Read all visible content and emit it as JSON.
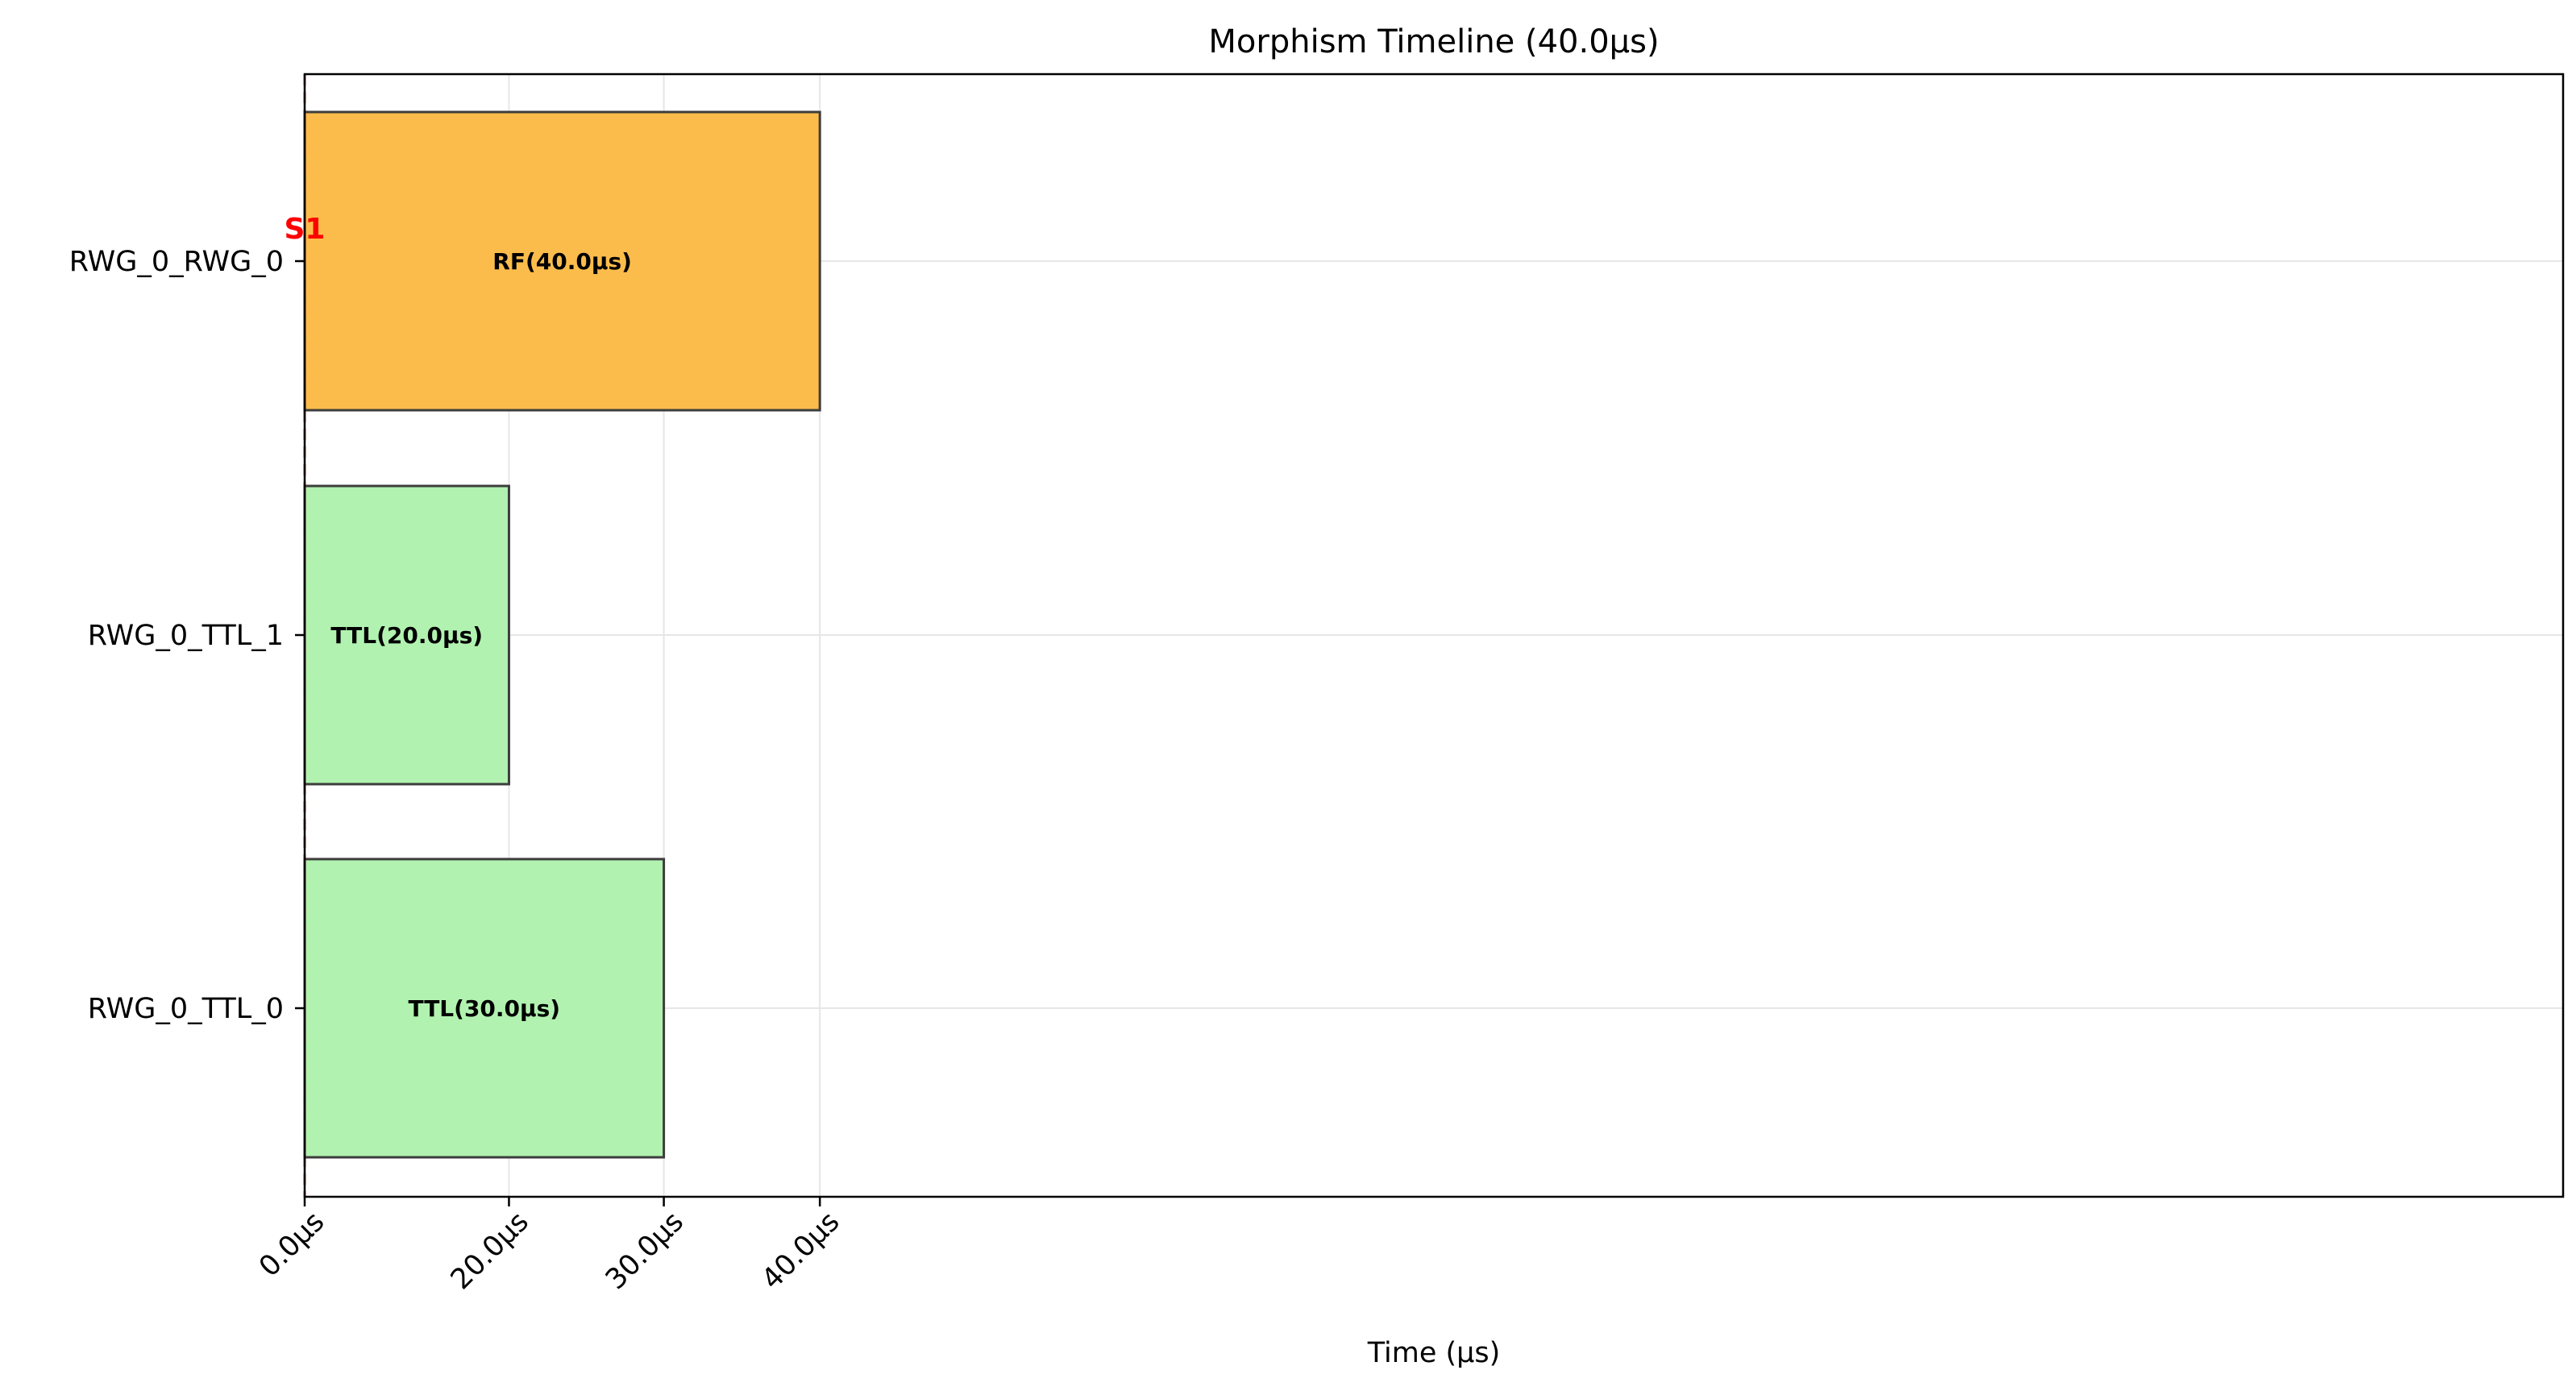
{
  "chart_data": {
    "type": "bar",
    "orientation": "horizontal",
    "title": "Morphism Timeline (40.0μs)",
    "xlabel": "Time (μs)",
    "ylabel": "",
    "xlim": [
      0,
      175
    ],
    "xticks": [
      {
        "value": 0,
        "label": "0.0μs"
      },
      {
        "value": 15.83,
        "label": "20.0μs"
      },
      {
        "value": 27.83,
        "label": "30.0μs"
      },
      {
        "value": 39.92,
        "label": "40.0μs"
      }
    ],
    "grid": true,
    "categories": [
      "RWG_0_RWG_0",
      "RWG_0_TTL_1",
      "RWG_0_TTL_0"
    ],
    "bars": [
      {
        "category": "RWG_0_RWG_0",
        "start": 0,
        "end": 39.92,
        "label": "RF(40.0μs)",
        "color": "#fbbc4b"
      },
      {
        "category": "RWG_0_TTL_1",
        "start": 0,
        "end": 15.83,
        "label": "TTL(20.0μs)",
        "color": "#b1f2b0"
      },
      {
        "category": "RWG_0_TTL_0",
        "start": 0,
        "end": 27.83,
        "label": "TTL(30.0μs)",
        "color": "#b1f2b0"
      }
    ],
    "markers": [
      {
        "x": 0,
        "label": "S1",
        "color": "#ff0000",
        "style": "dashed"
      }
    ]
  }
}
